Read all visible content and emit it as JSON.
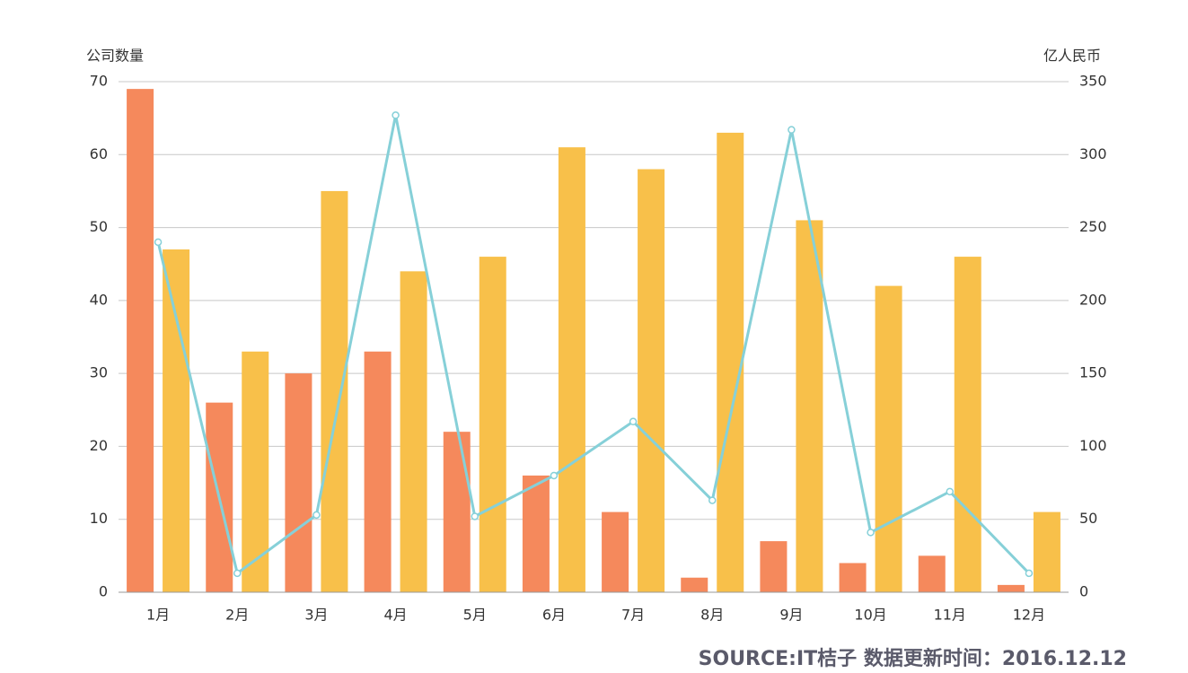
{
  "chart_data": {
    "type": "bar",
    "y_label": "公司数量",
    "y2_label": "亿人民币",
    "source": "SOURCE:IT桔子 数据更新时间：2016.12.12",
    "categories": [
      "1月",
      "2月",
      "3月",
      "4月",
      "5月",
      "6月",
      "7月",
      "8月",
      "9月",
      "10月",
      "11月",
      "12月"
    ],
    "series": [
      {
        "type": "bar",
        "color": "#f5895c",
        "values": [
          69,
          26,
          30,
          33,
          22,
          16,
          11,
          2,
          7,
          4,
          5,
          1
        ]
      },
      {
        "type": "bar",
        "color": "#f8c04a",
        "values": [
          47,
          33,
          55,
          44,
          46,
          61,
          58,
          63,
          51,
          42,
          46,
          11
        ]
      },
      {
        "type": "line",
        "axis": "y2",
        "color": "#86d0d8",
        "values": [
          240,
          13,
          53,
          327,
          52,
          80,
          117,
          63,
          317,
          41,
          69,
          13
        ]
      }
    ],
    "ylim": [
      0,
      70
    ],
    "yticks": [
      0,
      10,
      20,
      30,
      40,
      50,
      60,
      70
    ],
    "y2lim": [
      0,
      350
    ],
    "y2ticks": [
      0,
      50,
      100,
      150,
      200,
      250,
      300,
      350
    ],
    "grid": true
  }
}
